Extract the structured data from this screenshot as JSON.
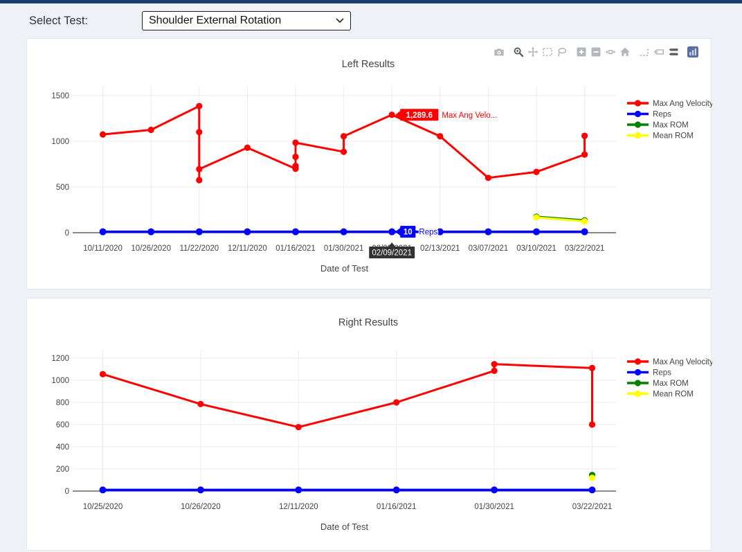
{
  "header": {
    "select_label": "Select Test:",
    "select_value": "Shoulder External Rotation"
  },
  "modebar": {
    "icons": [
      "camera-icon",
      "zoom-icon",
      "pan-icon",
      "box-select-icon",
      "lasso-select-icon",
      "zoom-in-icon",
      "zoom-out-icon",
      "autoscale-icon",
      "reset-axes-home-icon",
      "toggle-spikelines-icon",
      "hover-closest-icon",
      "hover-compare-icon",
      "plotly-logo-icon"
    ],
    "active": [
      "zoom-icon",
      "hover-compare-icon"
    ]
  },
  "colors": {
    "accent_bar": "#1d3f6d",
    "page_background": "#eef1f6",
    "card_background": "#ffffff",
    "grid": "#ebebeb",
    "axis_line": "#444444",
    "axis_tooltip_background": "#333333",
    "max_ang_velocity": "#ff0000",
    "reps": "#0000ff",
    "max_rom": "#008000",
    "mean_rom": "#ffff00"
  },
  "chart_data": [
    {
      "id": "left",
      "type": "line",
      "title": "Left Results",
      "xlabel": "Date of Test",
      "ylim": [
        0,
        1500
      ],
      "yticks": [
        0,
        500,
        1000,
        1500
      ],
      "grid": true,
      "legend_position": "right",
      "categories": [
        "10/11/2020",
        "10/26/2020",
        "11/22/2020",
        "12/11/2020",
        "01/16/2021",
        "01/30/2021",
        "02/09/2021",
        "02/13/2021",
        "03/07/2021",
        "03/10/2021",
        "03/22/2021"
      ],
      "series": [
        {
          "name": "Max Ang Velocity",
          "color": "#ff0000",
          "points": [
            [
              0,
              1075
            ],
            [
              1,
              1125
            ],
            [
              2,
              1385
            ],
            [
              2,
              1100
            ],
            [
              2,
              575
            ],
            [
              2,
              695
            ],
            [
              3,
              930
            ],
            [
              4,
              700
            ],
            [
              4,
              730
            ],
            [
              4,
              830
            ],
            [
              4,
              985
            ],
            [
              5,
              885
            ],
            [
              5,
              1055
            ],
            [
              6,
              1289.6
            ],
            [
              7,
              1055
            ],
            [
              8,
              600
            ],
            [
              9,
              665
            ],
            [
              10,
              855
            ],
            [
              10,
              1060
            ]
          ]
        },
        {
          "name": "Reps",
          "color": "#0000ff",
          "points": [
            [
              0,
              10
            ],
            [
              1,
              10
            ],
            [
              2,
              10
            ],
            [
              3,
              10
            ],
            [
              4,
              10
            ],
            [
              5,
              10
            ],
            [
              6,
              10
            ],
            [
              7,
              10
            ],
            [
              8,
              10
            ],
            [
              9,
              10
            ],
            [
              10,
              10
            ]
          ]
        },
        {
          "name": "Max ROM",
          "color": "#008000",
          "points": [
            [
              9,
              175
            ],
            [
              10,
              135
            ]
          ]
        },
        {
          "name": "Mean ROM",
          "color": "#ffff00",
          "points": [
            [
              9,
              168
            ],
            [
              10,
              125
            ]
          ]
        }
      ],
      "hover": {
        "category_index": 6,
        "axis_label": "02/09/2021",
        "items": [
          {
            "series": "Max Ang Velocity",
            "value_label": "1,289.6",
            "name_label": "Max Ang Velo...",
            "y": 1289.6,
            "color": "#ff0000"
          },
          {
            "series": "Reps",
            "value_label": "10",
            "name_label": "Reps",
            "y": 10,
            "color": "#0000ff"
          }
        ]
      }
    },
    {
      "id": "right",
      "type": "line",
      "title": "Right Results",
      "xlabel": "Date of Test",
      "ylim": [
        0,
        1200
      ],
      "yticks": [
        0,
        200,
        400,
        600,
        800,
        1000,
        1200
      ],
      "grid": true,
      "legend_position": "right",
      "categories": [
        "10/25/2020",
        "10/26/2020",
        "12/11/2020",
        "01/16/2021",
        "01/30/2021",
        "03/22/2021"
      ],
      "series": [
        {
          "name": "Max Ang Velocity",
          "color": "#ff0000",
          "points": [
            [
              0,
              1055
            ],
            [
              1,
              785
            ],
            [
              2,
              577
            ],
            [
              3,
              800
            ],
            [
              4,
              1085
            ],
            [
              4,
              1145
            ],
            [
              5,
              1110
            ],
            [
              5,
              600
            ]
          ]
        },
        {
          "name": "Reps",
          "color": "#0000ff",
          "points": [
            [
              0,
              10
            ],
            [
              1,
              10
            ],
            [
              2,
              10
            ],
            [
              3,
              10
            ],
            [
              4,
              10
            ],
            [
              5,
              10
            ]
          ]
        },
        {
          "name": "Max ROM",
          "color": "#008000",
          "points": [
            [
              5,
              145
            ]
          ]
        },
        {
          "name": "Mean ROM",
          "color": "#ffff00",
          "points": [
            [
              5,
              120
            ]
          ]
        }
      ],
      "hover": null
    }
  ]
}
